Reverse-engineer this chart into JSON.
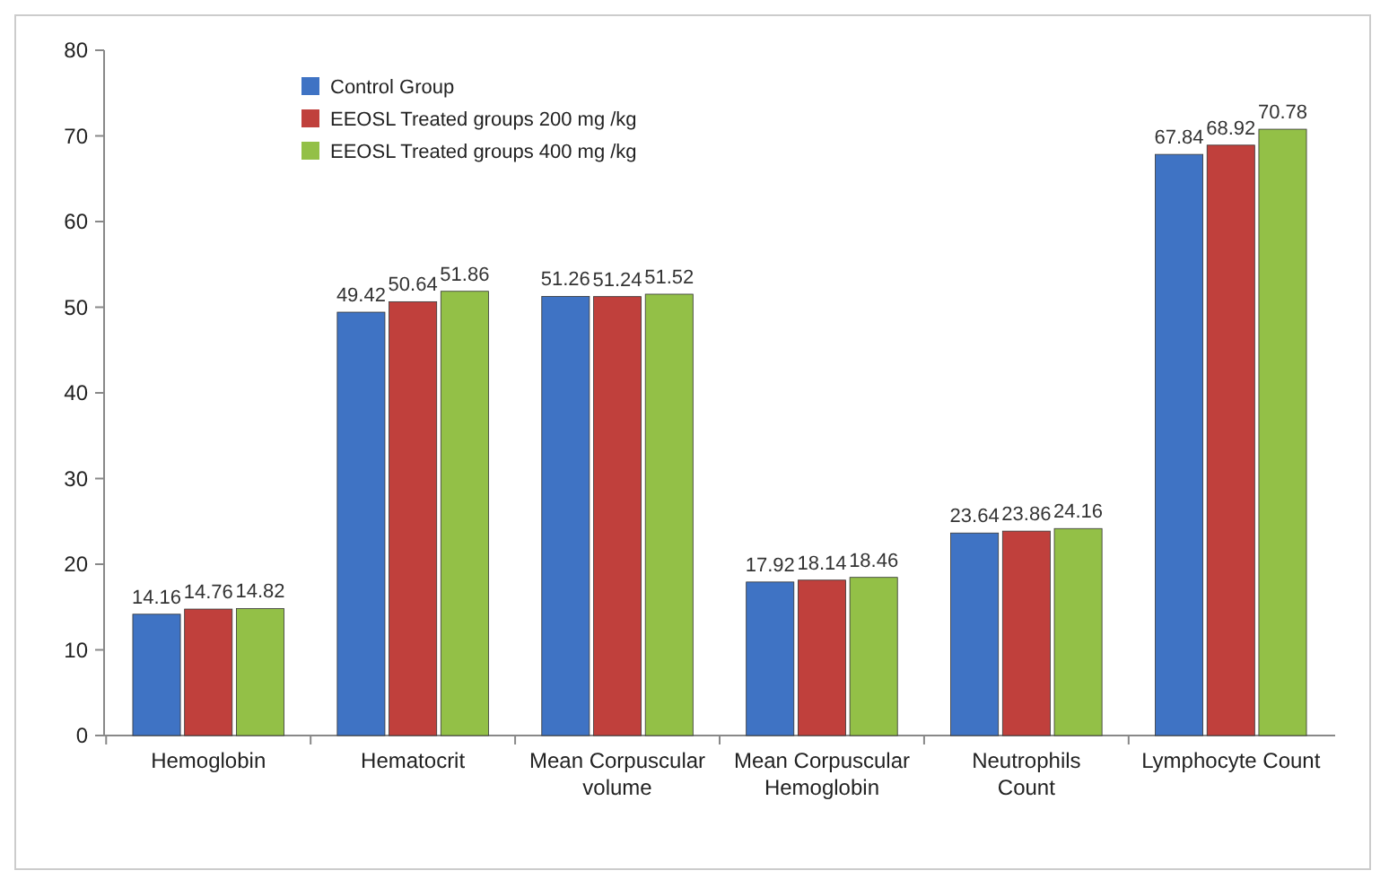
{
  "chart_data": {
    "type": "bar",
    "categories": [
      "Hemoglobin",
      "Hematocrit",
      "Mean Corpuscular volume",
      "Mean Corpuscular Hemoglobin",
      "Neutrophils Count",
      "Lymphocyte Count"
    ],
    "series": [
      {
        "name": "Control  Group",
        "color": "#3f73c4",
        "values": [
          14.16,
          49.42,
          51.26,
          17.92,
          23.64,
          67.84
        ]
      },
      {
        "name": "EEOSL Treated groups 200 mg /kg",
        "color": "#c0403c",
        "values": [
          14.76,
          50.64,
          51.24,
          18.14,
          23.86,
          68.92
        ]
      },
      {
        "name": "EEOSL Treated groups 400 mg /kg",
        "color": "#93c047",
        "values": [
          14.82,
          51.86,
          51.52,
          18.46,
          24.16,
          70.78
        ]
      }
    ],
    "ylim": [
      0,
      80
    ],
    "yticks": [
      0,
      10,
      20,
      30,
      40,
      50,
      60,
      70,
      80
    ],
    "data_labels": true,
    "legend": "top left",
    "grid": false
  }
}
